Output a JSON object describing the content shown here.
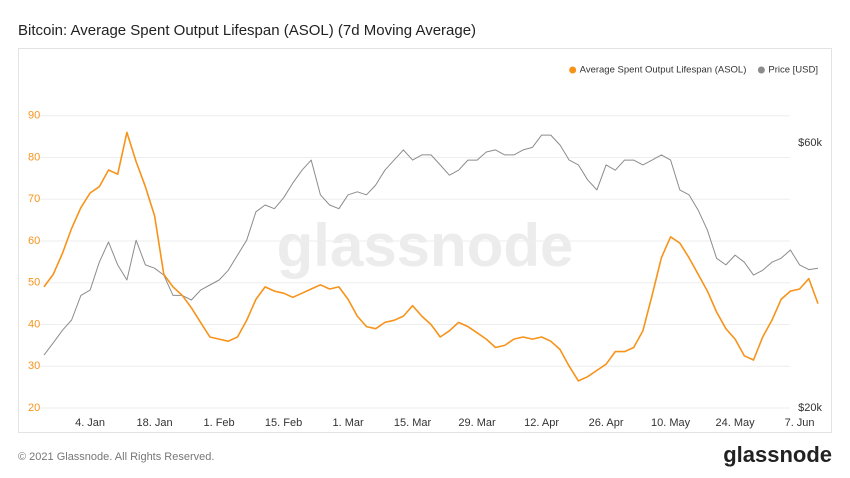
{
  "chart_data": {
    "type": "line",
    "title": "Bitcoin: Average Spent Output Lifespan (ASOL) (7d Moving Average)",
    "categories": [
      null,
      null,
      null,
      null,
      null,
      "4. Jan",
      null,
      null,
      null,
      null,
      null,
      null,
      "18. Jan",
      null,
      null,
      null,
      null,
      null,
      null,
      "1. Feb",
      null,
      null,
      null,
      null,
      null,
      null,
      "15. Feb",
      null,
      null,
      null,
      null,
      null,
      null,
      "1. Mar",
      null,
      null,
      null,
      null,
      null,
      null,
      "15. Mar",
      null,
      null,
      null,
      null,
      null,
      null,
      "29. Mar",
      null,
      null,
      null,
      null,
      null,
      null,
      "12. Apr",
      null,
      null,
      null,
      null,
      null,
      null,
      "26. Apr",
      null,
      null,
      null,
      null,
      null,
      null,
      "10. May",
      null,
      null,
      null,
      null,
      null,
      null,
      "24. May",
      null,
      null,
      null,
      null,
      null,
      null,
      "7. Jun",
      null,
      null
    ],
    "series": [
      {
        "name": "Average Spent Output Lifespan (ASOL)",
        "color": "#f7931a",
        "axis": "y",
        "values": [
          49,
          52,
          57,
          63,
          68,
          71.5,
          73,
          77,
          76,
          86,
          79,
          73,
          66,
          52,
          49,
          47,
          44,
          40.5,
          37,
          36.5,
          36,
          37,
          41,
          46,
          49,
          48,
          47.5,
          46.5,
          47.5,
          48.5,
          49.5,
          48.5,
          49,
          46,
          42,
          39.5,
          39,
          40.5,
          41,
          42,
          44.5,
          42,
          40,
          37,
          38.5,
          40.5,
          39.5,
          38,
          36.5,
          34.5,
          35,
          36.5,
          37,
          36.5,
          37,
          36,
          34,
          30,
          26.5,
          27.5,
          29,
          30.5,
          33.5,
          33.5,
          34.5,
          38.5,
          47,
          56,
          61,
          59.5,
          56,
          52,
          48,
          43,
          39,
          36.5,
          32.5,
          31.5,
          37,
          41,
          46,
          48,
          48.5,
          51,
          45
        ]
      },
      {
        "name": "Price [USD]",
        "color": "#8c8c8c",
        "axis": "y2",
        "values": [
          24900,
          26200,
          27600,
          28800,
          31900,
          32600,
          36600,
          39800,
          36200,
          34000,
          40100,
          36200,
          35700,
          34700,
          31900,
          31900,
          31300,
          32600,
          33300,
          34000,
          35400,
          37700,
          40100,
          45100,
          46400,
          45700,
          47800,
          50800,
          53600,
          55900,
          48400,
          46400,
          45700,
          48400,
          49000,
          48400,
          50400,
          53600,
          55900,
          58300,
          55900,
          57100,
          57100,
          54800,
          52500,
          53600,
          55900,
          55900,
          57800,
          58300,
          57100,
          57100,
          58300,
          58900,
          62000,
          62000,
          59500,
          55900,
          54800,
          51500,
          49400,
          54800,
          53600,
          55900,
          55900,
          54800,
          55900,
          57100,
          55900,
          49400,
          48400,
          45400,
          41800,
          37200,
          36200,
          37700,
          36600,
          34700,
          35400,
          36600,
          37200,
          38500,
          36200,
          35500,
          35700
        ]
      }
    ],
    "ylim": [
      20,
      94
    ],
    "yticks": [
      20,
      30,
      40,
      50,
      60,
      70,
      80,
      90
    ],
    "y2lim": [
      20000,
      72000
    ],
    "y2scale": "log",
    "y2ticks": [
      {
        "value": 20000,
        "label": "$20k"
      },
      {
        "value": 60000,
        "label": "$60k"
      }
    ],
    "grid": true,
    "legend": "top-right",
    "watermark": "glassnode"
  },
  "footer": {
    "copyright": "© 2021 Glassnode. All Rights Reserved.",
    "logo": "glassnode"
  }
}
